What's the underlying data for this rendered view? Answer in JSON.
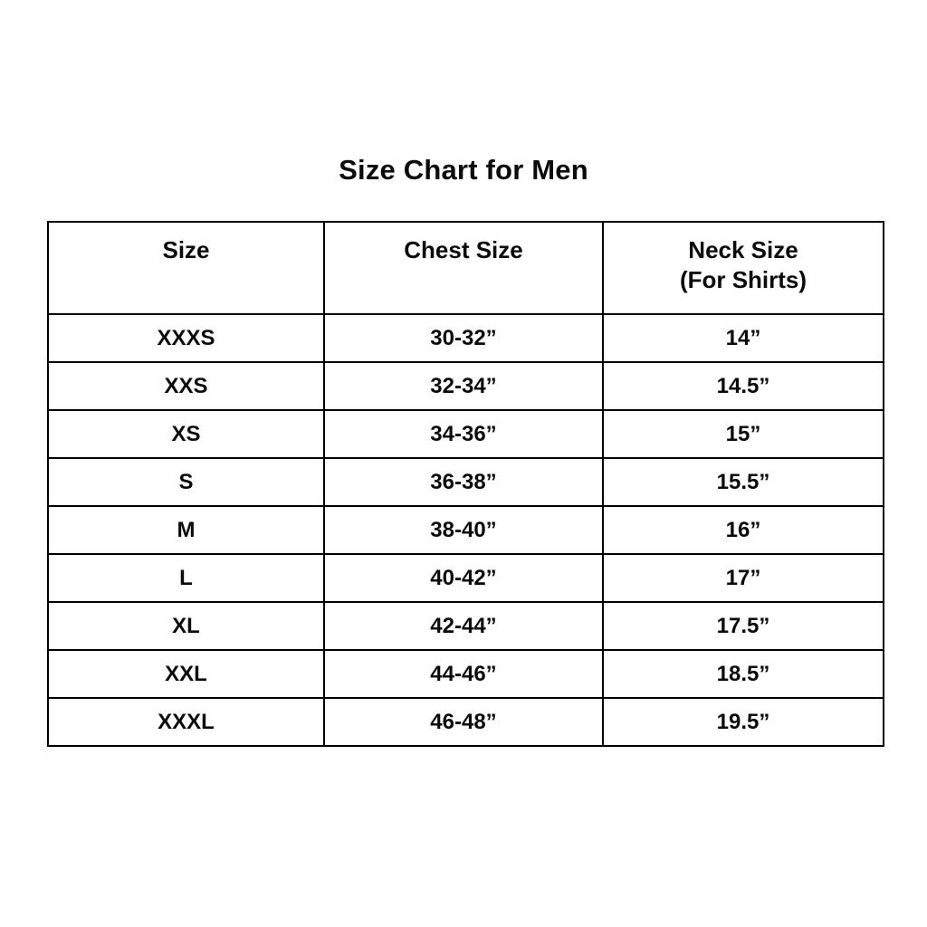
{
  "title": "Size Chart for Men",
  "table": {
    "headers": {
      "size": "Size",
      "chest": "Chest Size",
      "neck_line1": "Neck Size",
      "neck_line2": "(For Shirts)"
    }
  },
  "chart_data": {
    "type": "table",
    "title": "Size Chart for Men",
    "columns": [
      "Size",
      "Chest Size",
      "Neck Size (For Shirts)"
    ],
    "rows": [
      [
        "XXXS",
        "30-32”",
        "14”"
      ],
      [
        "XXS",
        "32-34”",
        "14.5”"
      ],
      [
        "XS",
        "34-36”",
        "15”"
      ],
      [
        "S",
        "36-38”",
        "15.5”"
      ],
      [
        "M",
        "38-40”",
        "16”"
      ],
      [
        "L",
        "40-42”",
        "17”"
      ],
      [
        "XL",
        "42-44”",
        "17.5”"
      ],
      [
        "XXL",
        "44-46”",
        "18.5”"
      ],
      [
        "XXXL",
        "46-48”",
        "19.5”"
      ]
    ]
  }
}
